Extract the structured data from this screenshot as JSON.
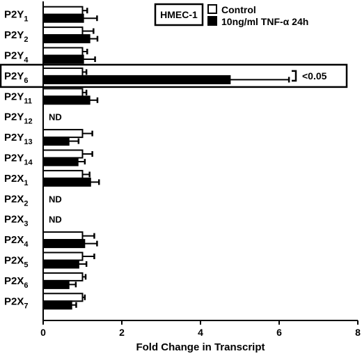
{
  "chart_data": {
    "type": "bar",
    "orientation": "horizontal",
    "title": "",
    "xlabel": "Fold Change in Transcript",
    "ylabel": "",
    "xlim": [
      0,
      8
    ],
    "xticks": [
      0,
      2,
      4,
      6,
      8
    ],
    "grid": false,
    "legend_placement": "top-right",
    "categories": [
      {
        "base": "P2Y",
        "sub": "1"
      },
      {
        "base": "P2Y",
        "sub": "2"
      },
      {
        "base": "P2Y",
        "sub": "4"
      },
      {
        "base": "P2Y",
        "sub": "6"
      },
      {
        "base": "P2Y",
        "sub": "11"
      },
      {
        "base": "P2Y",
        "sub": "12"
      },
      {
        "base": "P2Y",
        "sub": "13"
      },
      {
        "base": "P2Y",
        "sub": "14"
      },
      {
        "base": "P2X",
        "sub": "1"
      },
      {
        "base": "P2X",
        "sub": "2"
      },
      {
        "base": "P2X",
        "sub": "3"
      },
      {
        "base": "P2X",
        "sub": "4"
      },
      {
        "base": "P2X",
        "sub": "5"
      },
      {
        "base": "P2X",
        "sub": "6"
      },
      {
        "base": "P2X",
        "sub": "7"
      }
    ],
    "legend_title": "HMEC-1",
    "series": [
      {
        "name": "Control",
        "color": "#ffffff",
        "values": [
          1.0,
          1.0,
          1.0,
          1.0,
          1.0,
          null,
          1.0,
          1.0,
          1.0,
          null,
          null,
          1.0,
          1.0,
          1.0,
          1.0
        ],
        "errors": [
          0.12,
          0.28,
          0.12,
          0.1,
          0.1,
          null,
          0.25,
          0.25,
          0.18,
          null,
          null,
          0.3,
          0.3,
          0.08,
          0.06
        ]
      },
      {
        "name": "10ng/ml TNF-α 24h",
        "color": "#000000",
        "values": [
          1.02,
          1.18,
          1.02,
          4.75,
          1.18,
          null,
          0.65,
          0.88,
          1.2,
          null,
          null,
          1.05,
          0.9,
          0.65,
          0.72
        ],
        "errors": [
          0.35,
          0.2,
          0.3,
          1.5,
          0.2,
          null,
          0.25,
          0.18,
          0.22,
          null,
          null,
          0.32,
          0.2,
          0.18,
          0.12
        ]
      }
    ],
    "not_detected": [
      {
        "index": 5,
        "text": "ND"
      },
      {
        "index": 9,
        "text": "ND"
      },
      {
        "index": 10,
        "text": "ND"
      }
    ],
    "annotations": [
      {
        "index": 3,
        "text": "<0.05",
        "highlighted": true
      }
    ]
  }
}
